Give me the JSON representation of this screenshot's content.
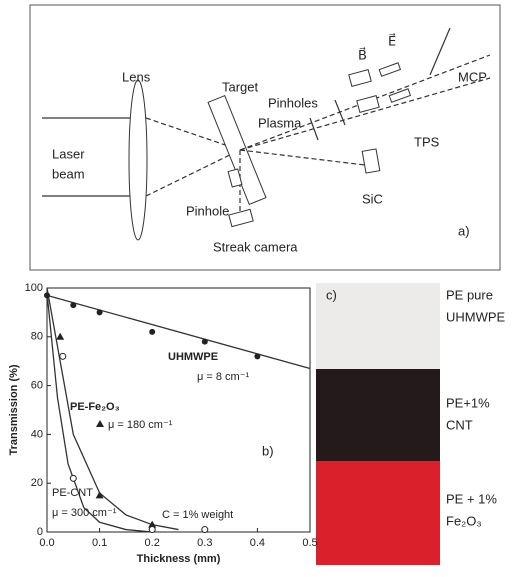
{
  "diagram": {
    "labels": [
      "Lens",
      "Laser",
      "beam",
      "Target",
      "Pinholes",
      "Plasma",
      "B⃗",
      "E⃗",
      "MCP",
      "TPS",
      "SiC",
      "Pinhole",
      "Streak camera",
      "a)"
    ]
  },
  "chart_data": {
    "type": "scatter",
    "xlabel": "Thickness (mm)",
    "ylabel": "Transmission (%)",
    "panel_label": "b)",
    "xlim": [
      0,
      0.5
    ],
    "ylim": [
      0,
      100
    ],
    "xticks": [
      {
        "value": 0,
        "label": "0.0"
      },
      0.1,
      0.2,
      0.3,
      0.4,
      0.5
    ],
    "yticks": [
      0,
      20,
      40,
      60,
      80,
      100
    ],
    "series": [
      {
        "marker": "circle",
        "color": "#222",
        "x": [
          0,
          0.05,
          0.1,
          0.2,
          0.3,
          0.4
        ],
        "values": [
          97,
          93,
          90,
          82,
          78,
          72
        ]
      },
      {
        "marker": "triangle",
        "color": "#222",
        "x": [
          0.025,
          0.1,
          0.2
        ],
        "values": [
          80,
          15,
          3
        ]
      },
      {
        "marker": "open-circle",
        "color": "#222",
        "x": [
          0.03,
          0.05,
          0.2,
          0.3
        ],
        "values": [
          72,
          22,
          1,
          1
        ]
      }
    ],
    "fits": [
      {
        "color": "#333",
        "x": [
          0,
          0.5
        ],
        "values": [
          97,
          67
        ]
      },
      {
        "color": "#333",
        "x": [
          0,
          0.025,
          0.05,
          0.1,
          0.15,
          0.2,
          0.25
        ],
        "values": [
          100,
          70,
          40,
          16,
          7,
          3,
          1
        ]
      },
      {
        "color": "#333",
        "x": [
          0,
          0.02,
          0.04,
          0.07,
          0.1,
          0.15,
          0.2
        ],
        "values": [
          98,
          55,
          28,
          10,
          4,
          1,
          0
        ]
      }
    ],
    "annotations": [
      "UHMWPE",
      "μ = 8 cm⁻¹",
      "PE-Fe₂O₃",
      "μ = 180 cm⁻¹",
      "PE-CNT",
      "μ = 300 cm⁻¹",
      "C = 1% weight"
    ]
  },
  "photo": {
    "panel_label": "c)",
    "samples": [
      [
        "PE pure",
        "UHMWPE"
      ],
      [
        "PE+1%",
        "CNT"
      ],
      [
        "PE + 1%",
        "Fe₂O₃"
      ]
    ]
  }
}
